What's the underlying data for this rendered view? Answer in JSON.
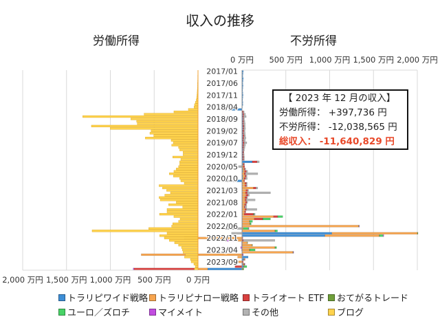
{
  "chart_data": {
    "type": "bar",
    "orientation": "horizontal",
    "title": "収入の推移",
    "panels": [
      {
        "subtitle": "労働所得",
        "xlim": [
          0,
          2000
        ],
        "direction": "reversed",
        "tick_labels": [
          "2,000 万円",
          "1,500 万円",
          "1,000 万円",
          "500 万円",
          "0 万円"
        ]
      },
      {
        "subtitle": "不労所得",
        "xlim": [
          0,
          2000
        ],
        "tick_labels": [
          "0 万円",
          "500 万円",
          "1,000 万円",
          "1,500 万円",
          "2,000 万円"
        ]
      }
    ],
    "unit": "万円",
    "y_tick_labels": [
      "2017/01",
      "2017/06",
      "2017/11",
      "2018/04",
      "2018/09",
      "2019/02",
      "2019/07",
      "2019/12",
      "2020/05",
      "2020/10",
      "2021/03",
      "2021/08",
      "2022/01",
      "2022/06",
      "2022/11",
      "2023/04",
      "2023/09"
    ],
    "start_month": "2017/01",
    "grid": true,
    "legend_position": "bottom",
    "series": [
      {
        "name": "トラリピワイド戦略",
        "color": "#3d8ed6",
        "panel": "不労所得",
        "values": [
          15,
          12,
          10,
          15,
          12,
          10,
          12,
          10,
          8,
          10,
          12,
          10,
          8,
          10,
          10,
          5,
          -150,
          5,
          8,
          8,
          10,
          8,
          8,
          10,
          10,
          8,
          8,
          10,
          8,
          8,
          10,
          8,
          8,
          10,
          8,
          8,
          8,
          8,
          117,
          10,
          5,
          8,
          10,
          5,
          8,
          10,
          -70,
          5,
          5,
          5,
          5,
          5,
          5,
          5,
          5,
          5,
          5,
          5,
          5,
          5,
          5,
          5,
          5,
          5,
          5,
          5,
          5,
          5,
          1025,
          945,
          5,
          5,
          5,
          5,
          5,
          5,
          5,
          5,
          70,
          20,
          5,
          10,
          15,
          -392
        ]
      },
      {
        "name": "トラリピナロー戦略",
        "color": "#f7a54f",
        "panel": "不労所得",
        "values": [
          0,
          0,
          0,
          0,
          0,
          0,
          0,
          0,
          0,
          0,
          0,
          0,
          0,
          0,
          0,
          0,
          0,
          0,
          0,
          0,
          0,
          0,
          0,
          0,
          0,
          0,
          0,
          0,
          0,
          0,
          0,
          0,
          0,
          0,
          0,
          0,
          0,
          0,
          0,
          5,
          10,
          15,
          20,
          20,
          25,
          15,
          20,
          30,
          30,
          125,
          40,
          35,
          40,
          30,
          30,
          35,
          25,
          20,
          30,
          25,
          20,
          355,
          135,
          80,
          85,
          1325,
          10,
          370,
          975,
          620,
          -650,
          -85,
          55,
          110,
          370,
          80,
          575,
          -1150,
          -50,
          10,
          -40,
          10,
          5,
          -140
        ]
      },
      {
        "name": "トライオート ETF",
        "color": "#d9403f",
        "panel": "不労所得",
        "values": [
          0,
          0,
          0,
          0,
          0,
          0,
          0,
          0,
          0,
          0,
          0,
          0,
          0,
          0,
          0,
          0,
          0,
          10,
          12,
          10,
          8,
          10,
          10,
          12,
          10,
          12,
          10,
          15,
          12,
          10,
          15,
          12,
          10,
          8,
          10,
          8,
          10,
          10,
          55,
          10,
          15,
          10,
          20,
          15,
          15,
          15,
          10,
          15,
          15,
          30,
          20,
          20,
          25,
          20,
          15,
          15,
          15,
          10,
          15,
          10,
          105,
          45,
          95,
          0,
          0,
          0,
          0,
          0,
          0,
          0,
          5,
          10,
          0,
          0,
          0,
          0,
          0,
          5,
          0,
          5,
          10,
          5,
          -80,
          -700
        ]
      },
      {
        "name": "おてがるトレード",
        "color": "#6f9f3a",
        "panel": "不労所得",
        "values": [
          0,
          0,
          0,
          0,
          0,
          0,
          0,
          0,
          0,
          0,
          0,
          0,
          0,
          0,
          0,
          0,
          0,
          0,
          0,
          0,
          0,
          0,
          0,
          0,
          0,
          0,
          0,
          0,
          0,
          0,
          0,
          0,
          0,
          0,
          0,
          0,
          0,
          0,
          0,
          0,
          0,
          0,
          0,
          0,
          0,
          0,
          0,
          0,
          0,
          0,
          0,
          0,
          0,
          0,
          0,
          0,
          0,
          0,
          0,
          0,
          5,
          5,
          5,
          5,
          5,
          5,
          0,
          5,
          8,
          5,
          0,
          0,
          5,
          5,
          5,
          5,
          5,
          0,
          0,
          0,
          0,
          5,
          5,
          20
        ]
      },
      {
        "name": "ユーロ／ズロチ",
        "color": "#48d366",
        "panel": "不労所得",
        "values": [
          0,
          0,
          0,
          0,
          0,
          0,
          0,
          0,
          0,
          0,
          0,
          0,
          0,
          0,
          0,
          0,
          0,
          0,
          0,
          0,
          0,
          0,
          0,
          0,
          0,
          0,
          0,
          0,
          0,
          0,
          0,
          0,
          0,
          0,
          0,
          0,
          0,
          0,
          0,
          0,
          0,
          0,
          0,
          0,
          0,
          0,
          0,
          0,
          0,
          0,
          0,
          0,
          0,
          0,
          0,
          0,
          0,
          0,
          0,
          0,
          5,
          55,
          85,
          30,
          10,
          0,
          60,
          25,
          0,
          40,
          0,
          0,
          0,
          0,
          15,
          60,
          0,
          0,
          0,
          0,
          0,
          0,
          30,
          0
        ]
      },
      {
        "name": "マイメイト",
        "color": "#c24de0",
        "panel": "不労所得",
        "values": [
          0,
          0,
          0,
          0,
          0,
          0,
          0,
          0,
          0,
          0,
          0,
          0,
          0,
          0,
          0,
          0,
          0,
          0,
          0,
          0,
          0,
          0,
          0,
          0,
          0,
          0,
          0,
          0,
          0,
          0,
          0,
          0,
          0,
          0,
          0,
          0,
          0,
          0,
          0,
          0,
          0,
          0,
          0,
          0,
          0,
          0,
          0,
          0,
          0,
          0,
          0,
          0,
          0,
          0,
          0,
          0,
          0,
          0,
          0,
          0,
          0,
          0,
          0,
          0,
          0,
          5,
          5,
          0,
          0,
          8,
          -10,
          -95,
          -5,
          -5,
          -15,
          -5,
          5,
          5,
          0,
          0,
          0,
          5,
          0,
          -10
        ]
      },
      {
        "name": "その他",
        "color": "#b3b3b3",
        "panel": "不労所得",
        "values": [
          0,
          0,
          0,
          0,
          0,
          0,
          0,
          0,
          0,
          0,
          0,
          0,
          0,
          0,
          0,
          0,
          0,
          10,
          20,
          30,
          10,
          15,
          20,
          15,
          20,
          15,
          20,
          15,
          25,
          20,
          30,
          20,
          15,
          10,
          5,
          10,
          10,
          10,
          25,
          5,
          -40,
          10,
          15,
          140,
          10,
          20,
          -160,
          10,
          10,
          20,
          10,
          265,
          15,
          10,
          100,
          10,
          10,
          20,
          120,
          5,
          10,
          0,
          0,
          0,
          0,
          0,
          -315,
          0,
          -120,
          0,
          0,
          360,
          0,
          0,
          0,
          0,
          0,
          0,
          0,
          0,
          0,
          0,
          0,
          0
        ]
      },
      {
        "name": "ブログ",
        "color": "#ffd34d",
        "panel": "労働所得",
        "values": [
          2,
          2,
          3,
          3,
          4,
          5,
          5,
          6,
          8,
          10,
          12,
          15,
          20,
          30,
          40,
          45,
          110,
          275,
          615,
          1315,
          766,
          700,
          693,
          1216,
          1001,
          536,
          549,
          505,
          601,
          306,
          282,
          300,
          222,
          209,
          170,
          170,
          288,
          196,
          209,
          209,
          222,
          248,
          275,
          327,
          280,
          209,
          196,
          157,
          444,
          405,
          358,
          314,
          379,
          444,
          431,
          248,
          335,
          175,
          353,
          353,
          439,
          275,
          204,
          222,
          288,
          301,
          562,
          1208,
          353,
          437,
          384,
          327,
          267,
          222,
          188,
          178,
          170,
          144,
          154,
          86,
          78,
          47,
          31,
          40
        ]
      }
    ]
  },
  "info_box": {
    "heading": "【 2023 年 12 月の収入】",
    "labor_label": "労働所得：",
    "labor_value": "+397,736 円",
    "nonlabor_label": "不労所得：",
    "nonlabor_value": "-12,038,565 円",
    "total_label": "総収入：",
    "total_value": "-11,640,829 円",
    "total_color": "#e8492a"
  }
}
